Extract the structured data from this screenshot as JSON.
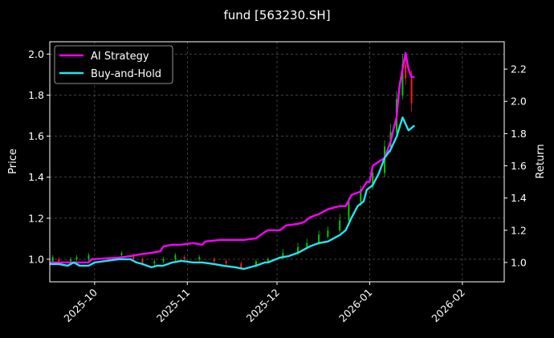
{
  "chart_data": {
    "type": "line",
    "title": "fund [563230.SH]",
    "ylabel_left": "Price",
    "ylabel_right": "Return",
    "x_range": [
      "2025-09-16",
      "2026-02-15"
    ],
    "y_left_range": [
      0.89,
      2.06
    ],
    "y_right_range": [
      0.88,
      2.37
    ],
    "x_ticks": [
      "2025-10",
      "2025-11",
      "2025-12",
      "2026-01",
      "2026-02"
    ],
    "y_left_ticks": [
      "1.0",
      "1.2",
      "1.4",
      "1.6",
      "1.8",
      "2.0"
    ],
    "y_right_ticks": [
      "1.0",
      "1.2",
      "1.4",
      "1.6",
      "1.8",
      "2.0",
      "2.2"
    ],
    "grid": true,
    "legend_position": "top-left",
    "colors": {
      "ai_strategy": "#ff00ff",
      "buy_and_hold": "#22e5f0",
      "candle_up": "#00c800",
      "candle_down": "#ff1a1a"
    },
    "series": [
      {
        "name": "AI Strategy",
        "axis": "right",
        "points": [
          [
            "2025-09-16",
            1.0
          ],
          [
            "2025-09-18",
            1.0
          ],
          [
            "2025-09-20",
            1.0
          ],
          [
            "2025-09-22",
            1.0
          ],
          [
            "2025-09-24",
            1.0
          ],
          [
            "2025-09-26",
            1.0
          ],
          [
            "2025-09-29",
            1.0
          ],
          [
            "2025-09-30",
            1.02
          ],
          [
            "2025-10-09",
            1.03
          ],
          [
            "2025-10-13",
            1.04
          ],
          [
            "2025-10-16",
            1.05
          ],
          [
            "2025-10-20",
            1.06
          ],
          [
            "2025-10-23",
            1.07
          ],
          [
            "2025-10-24",
            1.1
          ],
          [
            "2025-10-27",
            1.11
          ],
          [
            "2025-10-30",
            1.11
          ],
          [
            "2025-11-03",
            1.12
          ],
          [
            "2025-11-06",
            1.11
          ],
          [
            "2025-11-07",
            1.13
          ],
          [
            "2025-11-12",
            1.14
          ],
          [
            "2025-11-17",
            1.14
          ],
          [
            "2025-11-20",
            1.14
          ],
          [
            "2025-11-24",
            1.15
          ],
          [
            "2025-11-27",
            1.19
          ],
          [
            "2025-11-28",
            1.2
          ],
          [
            "2025-12-02",
            1.2
          ],
          [
            "2025-12-04",
            1.23
          ],
          [
            "2025-12-08",
            1.24
          ],
          [
            "2025-12-10",
            1.25
          ],
          [
            "2025-12-12",
            1.28
          ],
          [
            "2025-12-15",
            1.3
          ],
          [
            "2025-12-18",
            1.33
          ],
          [
            "2025-12-22",
            1.35
          ],
          [
            "2025-12-24",
            1.35
          ],
          [
            "2025-12-26",
            1.42
          ],
          [
            "2025-12-29",
            1.44
          ],
          [
            "2025-12-31",
            1.5
          ],
          [
            "2026-01-01",
            1.5
          ],
          [
            "2026-01-02",
            1.6
          ],
          [
            "2026-01-06",
            1.65
          ],
          [
            "2026-01-08",
            1.75
          ],
          [
            "2026-01-09",
            1.83
          ],
          [
            "2026-01-10",
            1.9
          ],
          [
            "2026-01-11",
            2.1
          ],
          [
            "2026-01-13",
            2.3
          ],
          [
            "2026-01-14",
            2.2
          ],
          [
            "2026-01-15",
            2.15
          ],
          [
            "2026-01-16",
            2.15
          ]
        ]
      },
      {
        "name": "Buy-and-Hold",
        "axis": "right",
        "points": [
          [
            "2025-09-16",
            0.99
          ],
          [
            "2025-09-19",
            0.99
          ],
          [
            "2025-09-22",
            0.98
          ],
          [
            "2025-09-24",
            1.0
          ],
          [
            "2025-09-26",
            0.98
          ],
          [
            "2025-09-29",
            0.98
          ],
          [
            "2025-10-01",
            1.0
          ],
          [
            "2025-10-09",
            1.02
          ],
          [
            "2025-10-13",
            1.02
          ],
          [
            "2025-10-15",
            1.0
          ],
          [
            "2025-10-17",
            0.99
          ],
          [
            "2025-10-20",
            0.97
          ],
          [
            "2025-10-22",
            0.98
          ],
          [
            "2025-10-24",
            0.98
          ],
          [
            "2025-10-27",
            1.0
          ],
          [
            "2025-10-30",
            1.01
          ],
          [
            "2025-11-03",
            1.0
          ],
          [
            "2025-11-06",
            1.0
          ],
          [
            "2025-11-10",
            0.99
          ],
          [
            "2025-11-13",
            0.98
          ],
          [
            "2025-11-17",
            0.97
          ],
          [
            "2025-11-20",
            0.96
          ],
          [
            "2025-11-24",
            0.98
          ],
          [
            "2025-11-27",
            1.0
          ],
          [
            "2025-11-28",
            1.0
          ],
          [
            "2025-12-02",
            1.03
          ],
          [
            "2025-12-05",
            1.04
          ],
          [
            "2025-12-08",
            1.06
          ],
          [
            "2025-12-10",
            1.08
          ],
          [
            "2025-12-12",
            1.1
          ],
          [
            "2025-12-15",
            1.12
          ],
          [
            "2025-12-18",
            1.13
          ],
          [
            "2025-12-22",
            1.17
          ],
          [
            "2025-12-24",
            1.2
          ],
          [
            "2025-12-26",
            1.28
          ],
          [
            "2025-12-28",
            1.35
          ],
          [
            "2025-12-30",
            1.38
          ],
          [
            "2025-12-31",
            1.45
          ],
          [
            "2026-01-02",
            1.48
          ],
          [
            "2026-01-04",
            1.55
          ],
          [
            "2026-01-06",
            1.65
          ],
          [
            "2026-01-08",
            1.7
          ],
          [
            "2026-01-10",
            1.78
          ],
          [
            "2026-01-12",
            1.9
          ],
          [
            "2026-01-14",
            1.82
          ],
          [
            "2026-01-16",
            1.85
          ]
        ]
      }
    ],
    "candles": {
      "axis": "left",
      "description_values": "date, open, high, low, close",
      "points": [
        [
          "2025-09-17",
          0.99,
          1.02,
          0.98,
          1.01
        ],
        [
          "2025-09-19",
          1.0,
          1.01,
          0.99,
          0.99
        ],
        [
          "2025-09-23",
          0.99,
          1.01,
          0.98,
          1.0
        ],
        [
          "2025-09-25",
          1.0,
          1.02,
          0.99,
          1.01
        ],
        [
          "2025-09-29",
          1.0,
          1.03,
          0.99,
          1.02
        ],
        [
          "2025-10-10",
          1.02,
          1.04,
          1.01,
          1.03
        ],
        [
          "2025-10-14",
          1.02,
          1.03,
          1.0,
          1.0
        ],
        [
          "2025-10-17",
          1.0,
          1.01,
          0.97,
          0.98
        ],
        [
          "2025-10-21",
          0.98,
          1.0,
          0.97,
          0.99
        ],
        [
          "2025-10-24",
          0.99,
          1.01,
          0.98,
          1.0
        ],
        [
          "2025-10-28",
          1.0,
          1.03,
          0.99,
          1.02
        ],
        [
          "2025-10-31",
          1.01,
          1.02,
          0.99,
          1.0
        ],
        [
          "2025-11-05",
          1.0,
          1.02,
          0.99,
          1.01
        ],
        [
          "2025-11-10",
          1.0,
          1.01,
          0.98,
          0.99
        ],
        [
          "2025-11-14",
          0.99,
          1.0,
          0.97,
          0.98
        ],
        [
          "2025-11-19",
          0.98,
          0.99,
          0.95,
          0.96
        ],
        [
          "2025-11-24",
          0.97,
          1.0,
          0.96,
          0.99
        ],
        [
          "2025-11-28",
          0.99,
          1.01,
          0.98,
          1.0
        ],
        [
          "2025-12-03",
          1.01,
          1.05,
          1.0,
          1.03
        ],
        [
          "2025-12-08",
          1.03,
          1.08,
          1.02,
          1.06
        ],
        [
          "2025-12-11",
          1.06,
          1.1,
          1.05,
          1.08
        ],
        [
          "2025-12-15",
          1.08,
          1.14,
          1.07,
          1.12
        ],
        [
          "2025-12-18",
          1.11,
          1.16,
          1.1,
          1.14
        ],
        [
          "2025-12-22",
          1.14,
          1.22,
          1.13,
          1.19
        ],
        [
          "2025-12-25",
          1.19,
          1.3,
          1.18,
          1.28
        ],
        [
          "2025-12-29",
          1.28,
          1.36,
          1.26,
          1.34
        ],
        [
          "2026-01-02",
          1.35,
          1.45,
          1.34,
          1.42
        ],
        [
          "2026-01-06",
          1.42,
          1.58,
          1.4,
          1.55
        ],
        [
          "2026-01-08",
          1.55,
          1.66,
          1.52,
          1.62
        ],
        [
          "2026-01-10",
          1.62,
          1.82,
          1.6,
          1.78
        ],
        [
          "2026-01-12",
          1.8,
          2.0,
          1.78,
          1.95
        ],
        [
          "2026-01-13",
          1.95,
          2.0,
          1.85,
          1.88
        ],
        [
          "2026-01-15",
          1.88,
          1.92,
          1.72,
          1.76
        ]
      ]
    },
    "legend": [
      "AI Strategy",
      "Buy-and-Hold"
    ]
  }
}
